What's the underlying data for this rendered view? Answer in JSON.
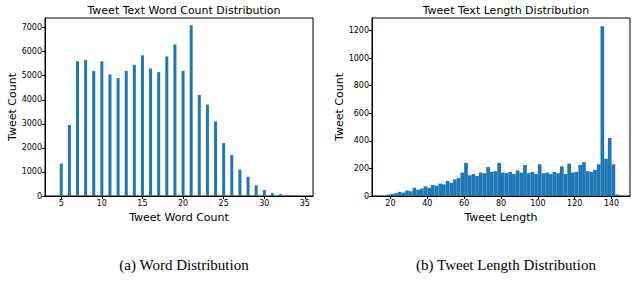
{
  "chart_data": [
    {
      "type": "bar",
      "title": "Tweet Text Word Count Distribution",
      "x_label": "Tweet Word Count",
      "y_label": "Tweet Count",
      "caption": "(a) Word Distribution",
      "color": "#1f77b4",
      "x": [
        5,
        6,
        7,
        8,
        9,
        10,
        11,
        12,
        13,
        14,
        15,
        16,
        17,
        18,
        19,
        20,
        21,
        22,
        23,
        24,
        25,
        26,
        27,
        28,
        29,
        30,
        31,
        32,
        33,
        34
      ],
      "values": [
        1350,
        2950,
        5600,
        5650,
        5200,
        5600,
        5050,
        4900,
        5200,
        5450,
        5850,
        5300,
        5150,
        5800,
        6300,
        5200,
        7100,
        4200,
        3800,
        3100,
        2200,
        1700,
        1100,
        800,
        450,
        250,
        120,
        80,
        40,
        20
      ],
      "xlim": [
        3,
        36
      ],
      "xticks": [
        5,
        10,
        15,
        20,
        25,
        30,
        35
      ],
      "ylim": [
        0,
        7400
      ],
      "yticks": [
        0,
        1000,
        2000,
        3000,
        4000,
        5000,
        6000,
        7000
      ]
    },
    {
      "type": "histogram",
      "title": "Tweet Text Length Distribution",
      "x_label": "Tweet Length",
      "y_label": "Tweet Count",
      "caption": "(b) Tweet Length Distribution",
      "color": "#1f77b4",
      "bins": [
        18,
        20,
        22,
        24,
        26,
        28,
        30,
        32,
        34,
        36,
        38,
        40,
        42,
        44,
        46,
        48,
        50,
        52,
        54,
        56,
        58,
        60,
        62,
        64,
        66,
        68,
        70,
        72,
        74,
        76,
        78,
        80,
        82,
        84,
        86,
        88,
        90,
        92,
        94,
        96,
        98,
        100,
        102,
        104,
        106,
        108,
        110,
        112,
        114,
        116,
        118,
        120,
        122,
        124,
        126,
        128,
        130,
        132,
        134,
        136,
        138,
        140,
        142,
        144
      ],
      "values": [
        10,
        15,
        20,
        30,
        25,
        40,
        35,
        60,
        45,
        55,
        70,
        60,
        80,
        75,
        90,
        85,
        110,
        95,
        120,
        130,
        170,
        240,
        150,
        160,
        145,
        170,
        165,
        210,
        175,
        180,
        240,
        170,
        165,
        175,
        160,
        185,
        170,
        225,
        165,
        175,
        160,
        230,
        165,
        170,
        160,
        175,
        165,
        215,
        160,
        235,
        170,
        175,
        225,
        245,
        180,
        175,
        190,
        230,
        1230,
        270,
        420,
        230,
        10
      ],
      "xlim": [
        10,
        150
      ],
      "xticks": [
        20,
        40,
        60,
        80,
        100,
        120,
        140
      ],
      "ylim": [
        0,
        1290
      ],
      "yticks": [
        0,
        200,
        400,
        600,
        800,
        1000,
        1200
      ]
    }
  ]
}
